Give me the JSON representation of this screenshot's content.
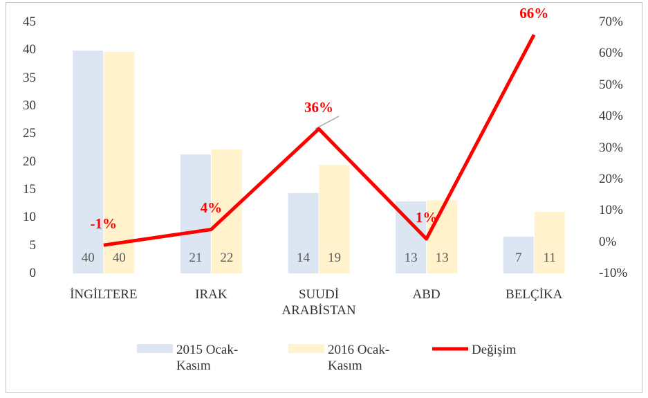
{
  "chart_data": {
    "type": "bar_line",
    "categories": [
      "İNGİLTERE",
      "IRAK",
      "SUUDİ ARABİSTAN",
      "ABD",
      "BELÇİKA"
    ],
    "series": [
      {
        "name": "2015 Ocak-Kasım",
        "color": "#dce6f2",
        "type": "bar",
        "values": [
          39.9,
          21.3,
          14.4,
          12.9,
          6.6
        ],
        "value_labels": [
          "40",
          "21",
          "14",
          "13",
          "7"
        ]
      },
      {
        "name": "2016 Ocak-Kasım",
        "color": "#fff2cc",
        "type": "bar",
        "values": [
          39.7,
          22.2,
          19.4,
          13.1,
          11
        ],
        "value_labels": [
          "40",
          "22",
          "19",
          "13",
          "11"
        ]
      },
      {
        "name": "Değişim",
        "color": "#ff0000",
        "type": "line",
        "axis": "y2",
        "values": [
          -1,
          4,
          36,
          1,
          66
        ],
        "value_labels": [
          "-1%",
          "4%",
          "36%",
          "1%",
          "66%"
        ]
      }
    ],
    "ylim": [
      0,
      45
    ],
    "yticks": [
      0,
      5,
      10,
      15,
      20,
      25,
      30,
      35,
      40,
      45
    ],
    "y2lim": [
      -10,
      70
    ],
    "y2ticks": [
      {
        "value": -10,
        "label": "-10%"
      },
      {
        "value": 0,
        "label": "0%"
      },
      {
        "value": 10,
        "label": "10%"
      },
      {
        "value": 20,
        "label": "20%"
      },
      {
        "value": 30,
        "label": "30%"
      },
      {
        "value": 40,
        "label": "40%"
      },
      {
        "value": 50,
        "label": "50%"
      },
      {
        "value": 60,
        "label": "60%"
      },
      {
        "value": 70,
        "label": "70%"
      }
    ],
    "legend": "bottom",
    "grid": false
  }
}
